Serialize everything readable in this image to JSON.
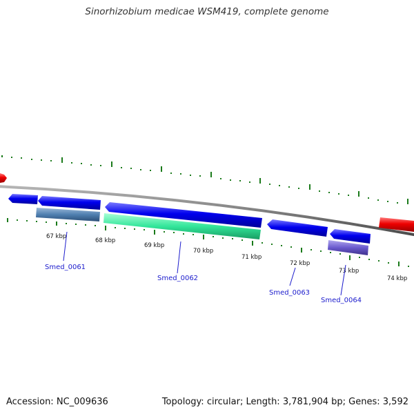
{
  "title": "Sinorhizobium medicae WSM419, complete genome",
  "footer": {
    "accession_label": "Accession:",
    "accession": "NC_009636",
    "topology_label": "Topology:",
    "topology": "circular",
    "length_label": "Length:",
    "length": "3,781,904 bp",
    "genes_label": "Genes:",
    "genes": "3,592"
  },
  "kbp_ticks": [
    "67 kbp",
    "68 kbp",
    "69 kbp",
    "70 kbp",
    "71 kbp",
    "72 kbp",
    "73 kbp",
    "74 kbp"
  ],
  "gene_labels": [
    "Smed_0061",
    "Smed_0062",
    "Smed_0063",
    "Smed_0064"
  ],
  "colors": {
    "genome_line": "#808080",
    "cds_blue": "#0000ee",
    "gene_steelblue": "#4f7fb0",
    "gene_seagreen": "#33e69a",
    "gene_slateblue": "#6a5acd",
    "feature_red": "#ee0000",
    "tick_green": "#1a7a1a",
    "label_blue": "#1a1acc"
  }
}
